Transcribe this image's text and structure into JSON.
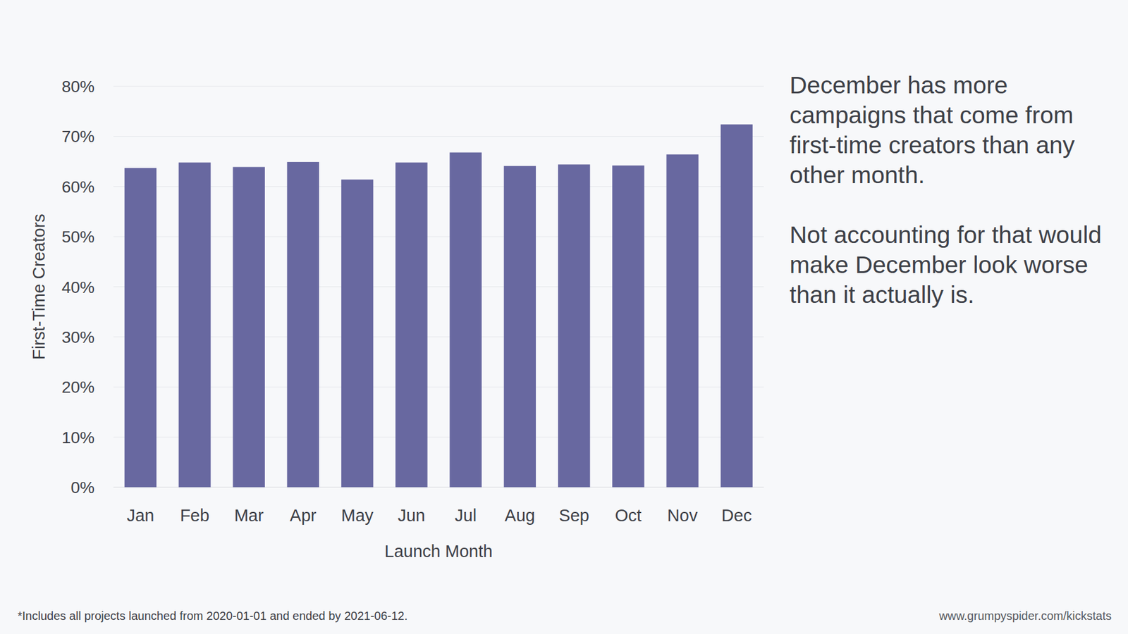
{
  "chart_data": {
    "type": "bar",
    "categories": [
      "Jan",
      "Feb",
      "Mar",
      "Apr",
      "May",
      "Jun",
      "Jul",
      "Aug",
      "Sep",
      "Oct",
      "Nov",
      "Dec"
    ],
    "values": [
      63.7,
      64.8,
      63.9,
      64.9,
      61.4,
      64.8,
      66.8,
      64.1,
      64.4,
      64.2,
      66.4,
      72.4
    ],
    "color": "#6868a0",
    "x_label": "Launch Month",
    "y_label": "First-Time Creators",
    "ylim": [
      0,
      80
    ],
    "yticks": [
      {
        "value": 0,
        "label": "0%"
      },
      {
        "value": 10,
        "label": "10%"
      },
      {
        "value": 20,
        "label": "20%"
      },
      {
        "value": 30,
        "label": "30%"
      },
      {
        "value": 40,
        "label": "40%"
      },
      {
        "value": 50,
        "label": "50%"
      },
      {
        "value": 60,
        "label": "60%"
      },
      {
        "value": 70,
        "label": "70%"
      },
      {
        "value": 80,
        "label": "80%"
      }
    ],
    "grid": true,
    "annotations": [
      "December has more campaigns that come from first-time creators than any other month.",
      "Not accounting for that would make December look worse than it actually is."
    ],
    "footnote": "*Includes all projects launched from 2020-01-01 and ended by 2021-06-12.",
    "source": "www.grumpyspider.com/kickstats"
  }
}
